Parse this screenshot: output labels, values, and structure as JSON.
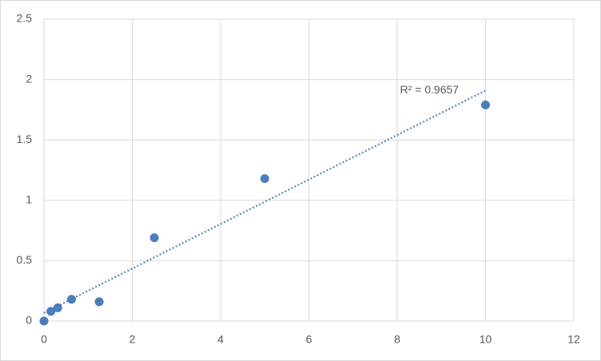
{
  "chart_data": {
    "type": "scatter",
    "series": [
      {
        "color": "#4a7ebb",
        "x": [
          0,
          0.156,
          0.3125,
          0.625,
          1.25,
          2.5,
          5,
          10
        ],
        "values": [
          0,
          0.08,
          0.11,
          0.18,
          0.16,
          0.69,
          1.18,
          1.79
        ]
      }
    ],
    "trendline": "linear",
    "trendline_label": "R² = 0.9657",
    "xlim": [
      0,
      12
    ],
    "xticks": [
      0,
      2,
      4,
      6,
      8,
      10,
      12
    ],
    "ylim": [
      0,
      2.5
    ],
    "yticks": [
      0,
      0.5,
      1,
      1.5,
      2,
      2.5
    ],
    "grid": true
  }
}
